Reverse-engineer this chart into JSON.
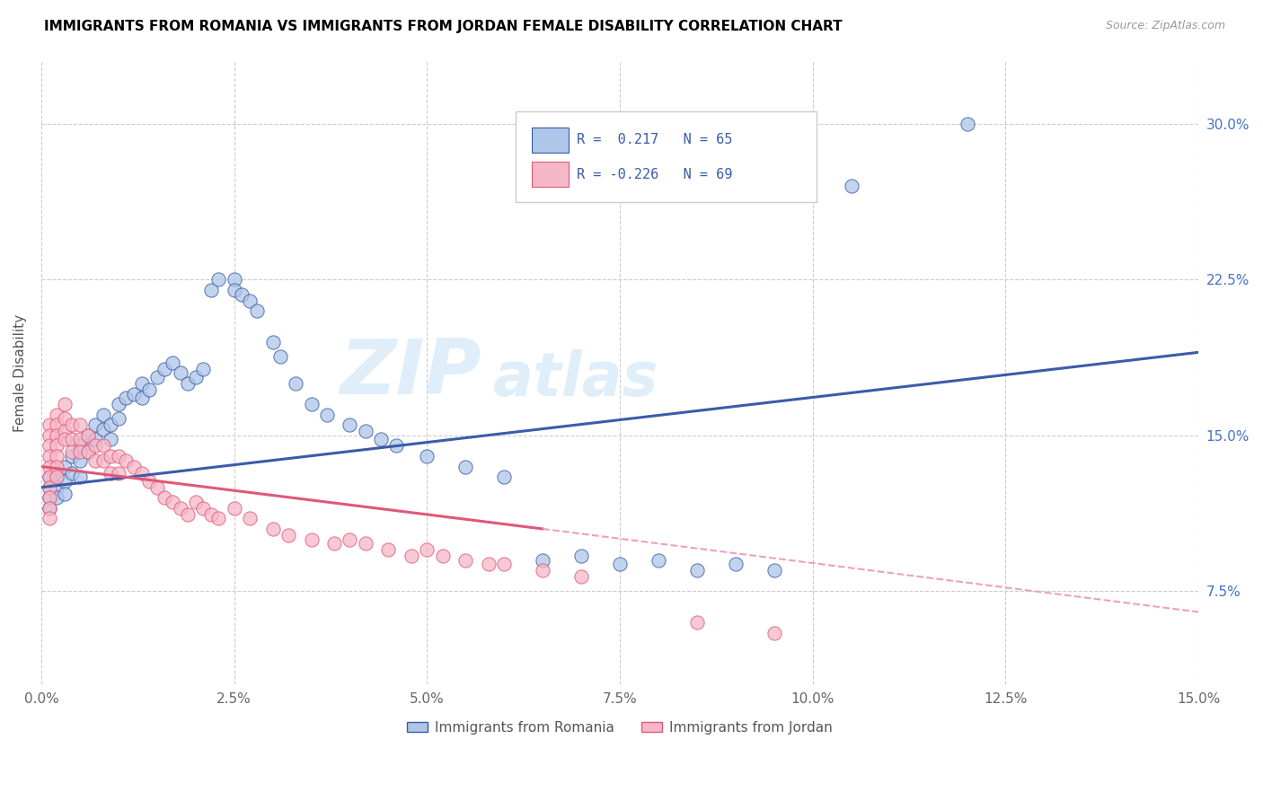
{
  "title": "IMMIGRANTS FROM ROMANIA VS IMMIGRANTS FROM JORDAN FEMALE DISABILITY CORRELATION CHART",
  "source": "Source: ZipAtlas.com",
  "ylabel": "Female Disability",
  "yticks": [
    0.075,
    0.15,
    0.225,
    0.3
  ],
  "ytick_labels": [
    "7.5%",
    "15.0%",
    "22.5%",
    "30.0%"
  ],
  "xlim": [
    0.0,
    0.15
  ],
  "ylim": [
    0.03,
    0.33
  ],
  "watermark_text": "ZIP",
  "watermark_text2": "atlas",
  "legend_label1": "Immigrants from Romania",
  "legend_label2": "Immigrants from Jordan",
  "color_romania": "#aec6e8",
  "color_jordan": "#f5b8c8",
  "trendline_romania_color": "#3a5ca8",
  "trendline_jordan_color": "#e05878",
  "trendline_jordan_dashed_color": "#f0a0b8",
  "romania_trendline_x0": 0.0,
  "romania_trendline_y0": 0.125,
  "romania_trendline_x1": 0.15,
  "romania_trendline_y1": 0.19,
  "jordan_trendline_x0": 0.0,
  "jordan_trendline_y0": 0.135,
  "jordan_trendline_x1_solid": 0.065,
  "jordan_trendline_y1_solid": 0.105,
  "jordan_trendline_x1_dash": 0.15,
  "jordan_trendline_y1_dash": 0.065,
  "romania_x": [
    0.001,
    0.001,
    0.001,
    0.001,
    0.002,
    0.002,
    0.002,
    0.003,
    0.003,
    0.003,
    0.004,
    0.004,
    0.005,
    0.005,
    0.005,
    0.006,
    0.006,
    0.007,
    0.007,
    0.008,
    0.008,
    0.009,
    0.009,
    0.01,
    0.01,
    0.011,
    0.012,
    0.013,
    0.013,
    0.014,
    0.015,
    0.016,
    0.017,
    0.018,
    0.019,
    0.02,
    0.021,
    0.022,
    0.023,
    0.025,
    0.025,
    0.026,
    0.027,
    0.028,
    0.03,
    0.031,
    0.033,
    0.035,
    0.037,
    0.04,
    0.042,
    0.044,
    0.046,
    0.05,
    0.055,
    0.06,
    0.065,
    0.07,
    0.075,
    0.08,
    0.085,
    0.09,
    0.095,
    0.105,
    0.12
  ],
  "romania_y": [
    0.13,
    0.125,
    0.12,
    0.115,
    0.13,
    0.125,
    0.12,
    0.135,
    0.128,
    0.122,
    0.14,
    0.132,
    0.145,
    0.138,
    0.13,
    0.15,
    0.142,
    0.155,
    0.148,
    0.16,
    0.153,
    0.155,
    0.148,
    0.165,
    0.158,
    0.168,
    0.17,
    0.175,
    0.168,
    0.172,
    0.178,
    0.182,
    0.185,
    0.18,
    0.175,
    0.178,
    0.182,
    0.22,
    0.225,
    0.225,
    0.22,
    0.218,
    0.215,
    0.21,
    0.195,
    0.188,
    0.175,
    0.165,
    0.16,
    0.155,
    0.152,
    0.148,
    0.145,
    0.14,
    0.135,
    0.13,
    0.09,
    0.092,
    0.088,
    0.09,
    0.085,
    0.088,
    0.085,
    0.27,
    0.3
  ],
  "jordan_x": [
    0.001,
    0.001,
    0.001,
    0.001,
    0.001,
    0.001,
    0.001,
    0.001,
    0.001,
    0.001,
    0.002,
    0.002,
    0.002,
    0.002,
    0.002,
    0.002,
    0.002,
    0.003,
    0.003,
    0.003,
    0.003,
    0.004,
    0.004,
    0.004,
    0.005,
    0.005,
    0.005,
    0.006,
    0.006,
    0.007,
    0.007,
    0.008,
    0.008,
    0.009,
    0.009,
    0.01,
    0.01,
    0.011,
    0.012,
    0.013,
    0.014,
    0.015,
    0.016,
    0.017,
    0.018,
    0.019,
    0.02,
    0.021,
    0.022,
    0.023,
    0.025,
    0.027,
    0.03,
    0.032,
    0.035,
    0.038,
    0.04,
    0.042,
    0.045,
    0.048,
    0.05,
    0.052,
    0.055,
    0.058,
    0.06,
    0.065,
    0.07,
    0.085,
    0.095
  ],
  "jordan_y": [
    0.155,
    0.15,
    0.145,
    0.14,
    0.135,
    0.13,
    0.125,
    0.12,
    0.115,
    0.11,
    0.16,
    0.155,
    0.15,
    0.145,
    0.14,
    0.135,
    0.13,
    0.165,
    0.158,
    0.152,
    0.148,
    0.155,
    0.148,
    0.142,
    0.155,
    0.148,
    0.142,
    0.15,
    0.142,
    0.145,
    0.138,
    0.145,
    0.138,
    0.14,
    0.132,
    0.14,
    0.132,
    0.138,
    0.135,
    0.132,
    0.128,
    0.125,
    0.12,
    0.118,
    0.115,
    0.112,
    0.118,
    0.115,
    0.112,
    0.11,
    0.115,
    0.11,
    0.105,
    0.102,
    0.1,
    0.098,
    0.1,
    0.098,
    0.095,
    0.092,
    0.095,
    0.092,
    0.09,
    0.088,
    0.088,
    0.085,
    0.082,
    0.06,
    0.055
  ]
}
